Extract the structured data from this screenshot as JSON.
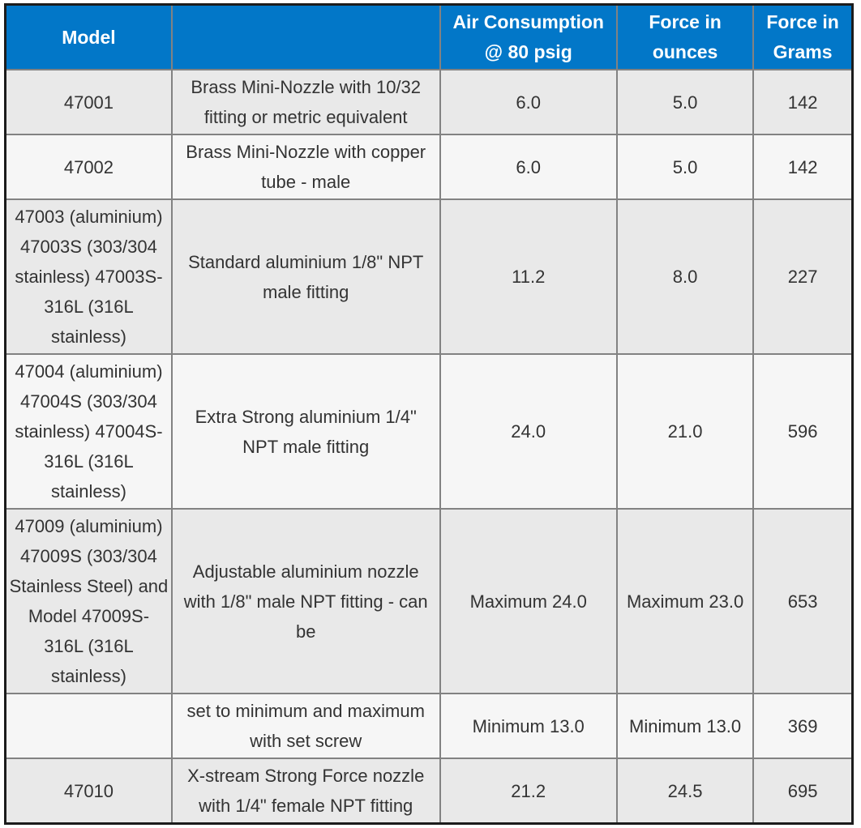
{
  "colors": {
    "header-bg": "#0277c8",
    "header-text": "#ffffff",
    "row-odd-bg": "#e9e9e9",
    "row-even-bg": "#f6f6f6",
    "border-inner": "#828282",
    "border-outer": "#1c1c1c",
    "body-text": "#333333"
  },
  "chart_data": {
    "type": "table",
    "columns": [
      "Model",
      "",
      "Air Consumption @ 80 psig",
      "Force in ounces",
      "Force in Grams"
    ],
    "rows": [
      [
        "47001",
        "Brass Mini-Nozzle with 10/32 fitting or metric equivalent",
        "6.0",
        "5.0",
        "142"
      ],
      [
        "47002",
        "Brass Mini-Nozzle with copper tube - male",
        "6.0",
        "5.0",
        "142"
      ],
      [
        "47003 (aluminium) 47003S (303/304 stainless) 47003S-316L (316L stainless)",
        "Standard aluminium 1/8\" NPT male fitting",
        "11.2",
        "8.0",
        "227"
      ],
      [
        "47004 (aluminium) 47004S (303/304 stainless) 47004S-316L (316L stainless)",
        "Extra Strong aluminium 1/4\" NPT male fitting",
        "24.0",
        "21.0",
        "596"
      ],
      [
        "47009 (aluminium) 47009S (303/304 Stainless Steel) and Model 47009S-316L (316L stainless)",
        "Adjustable aluminium nozzle with 1/8\" male NPT fitting - can be",
        "Maximum 24.0",
        "Maximum 23.0",
        "653"
      ],
      [
        "",
        "set to minimum and maximum with set screw",
        "Minimum 13.0",
        "Minimum 13.0",
        "369"
      ],
      [
        "47010",
        "X-stream Strong Force nozzle with 1/4\" female NPT fitting",
        "21.2",
        "24.5",
        "695"
      ]
    ]
  }
}
